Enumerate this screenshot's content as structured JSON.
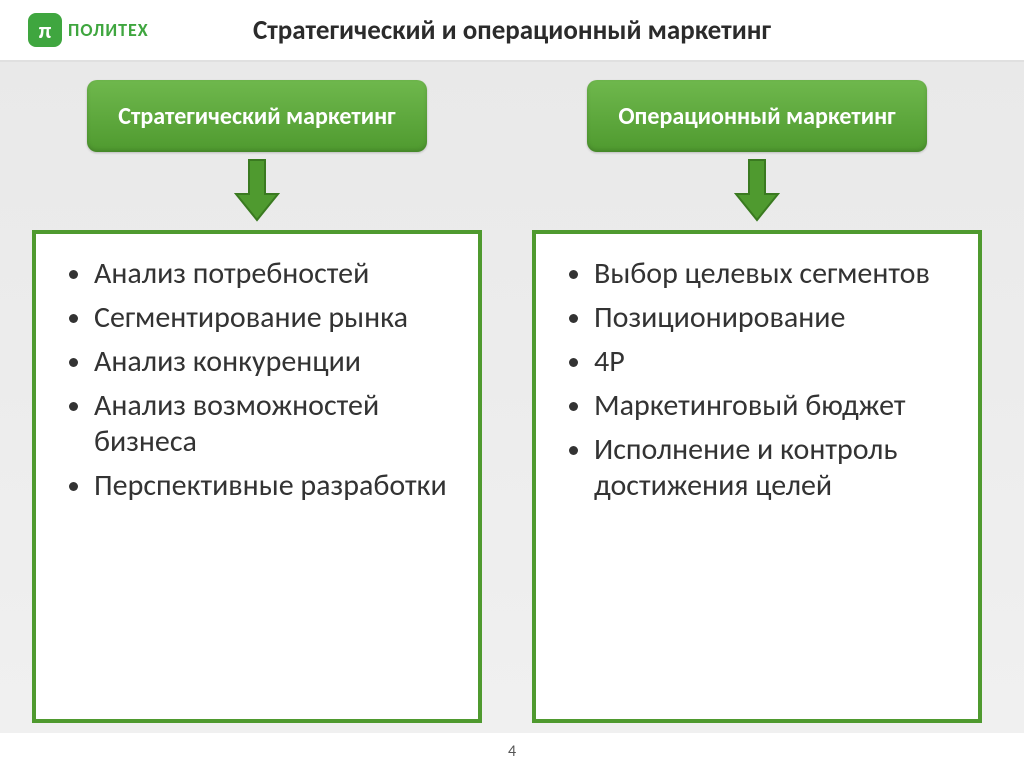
{
  "logo": {
    "badge_text": "π",
    "text": "ПОЛИТЕХ",
    "badge_bg": "#3fa63f",
    "text_color": "#3fa63f"
  },
  "title": {
    "text": "Стратегический и операционный маркетинг",
    "color": "#2b2b2b",
    "fontsize": 27
  },
  "columns": [
    {
      "header": "Стратегический маркетинг",
      "items": [
        "Анализ потребностей",
        "Сегментирование рынка",
        "Анализ конкуренции",
        "Анализ возможностей бизнеса",
        "Перспективные разработки"
      ]
    },
    {
      "header": "Операционный маркетинг",
      "items": [
        "Выбор целевых сегментов",
        "Позиционирование",
        "4P",
        "Маркетинговый бюджет",
        "Исполнение и контроль достижения целей"
      ]
    }
  ],
  "style": {
    "header_bg_top": "#6fb84d",
    "header_bg_bottom": "#4f9a2f",
    "header_text_color": "#ffffff",
    "header_fontsize": 24,
    "arrow_color": "#4f9a2f",
    "arrow_border": "#3a7a20",
    "box_border_color": "#4f9a2f",
    "item_color": "#333333",
    "item_fontsize": 30,
    "background": "#ececec"
  },
  "page_number": "4"
}
